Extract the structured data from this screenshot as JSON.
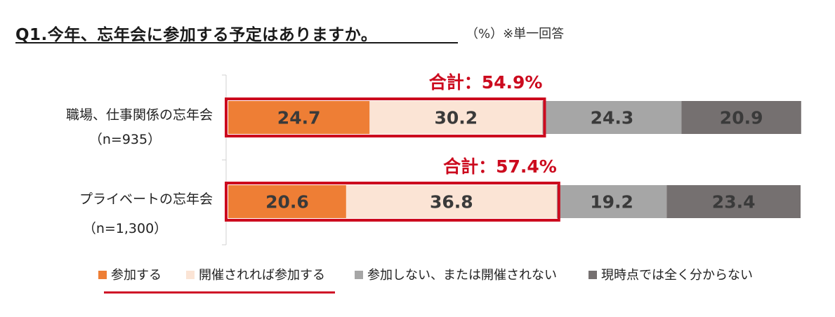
{
  "chart_data": {
    "type": "bar",
    "orientation": "horizontal",
    "stacked": true,
    "title": "Q1.今年、忘年会に参加する予定はありますか。",
    "subtitle": "（%）※単一回答",
    "xlim": [
      0,
      100
    ],
    "categories": [
      {
        "label": "職場、仕事関係の忘年会",
        "sub": "（n=935）"
      },
      {
        "label": "プライベートの忘年会",
        "sub": "（n=1,300）"
      }
    ],
    "series": [
      {
        "name": "参加する",
        "color": "#ee7e35",
        "text_color": "#3a3a3a",
        "values": [
          24.7,
          20.6
        ]
      },
      {
        "name": "開催されれば参加する",
        "color": "#fbe4d5",
        "text_color": "#3a3a3a",
        "values": [
          30.2,
          36.8
        ]
      },
      {
        "name": "参加しない、または開催されない",
        "color": "#a6a6a6",
        "text_color": "#3a3a3a",
        "values": [
          24.3,
          19.2
        ]
      },
      {
        "name": "現時点では全く分からない",
        "color": "#757070",
        "text_color": "#3a3a3a",
        "values": [
          20.9,
          23.4
        ]
      }
    ],
    "annotations": [
      "合計：54.9%",
      "合計：57.4%"
    ],
    "highlight_color": "#cc0a1e",
    "legend_position": "bottom"
  }
}
